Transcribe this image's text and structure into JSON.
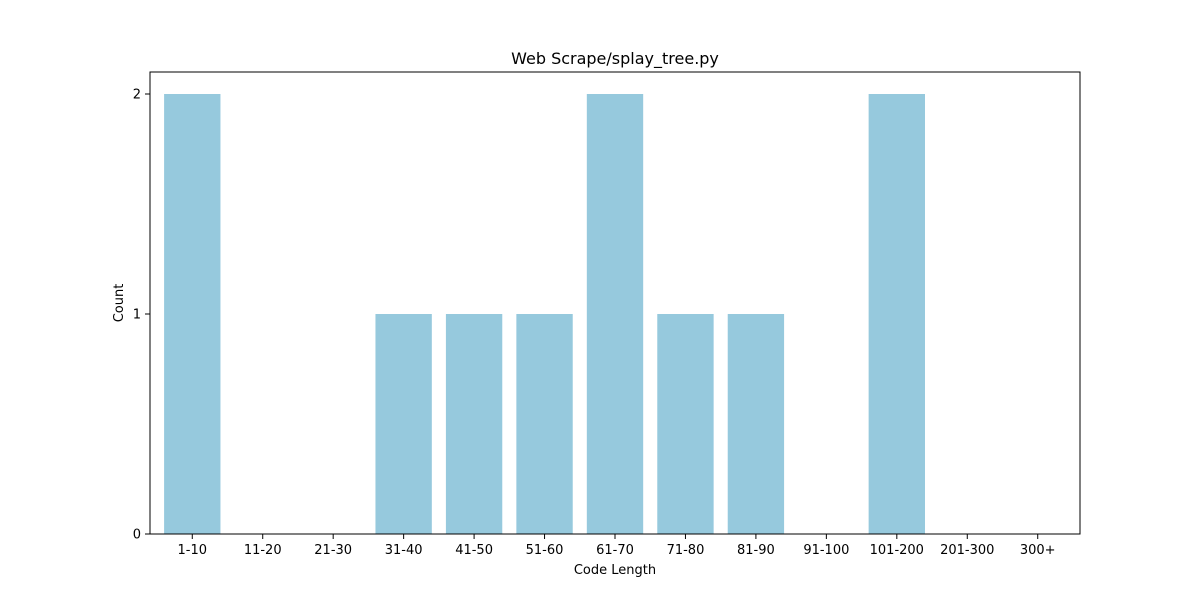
{
  "chart_data": {
    "type": "bar",
    "title": "Web Scrape/splay_tree.py",
    "xlabel": "Code Length",
    "ylabel": "Count",
    "categories": [
      "1-10",
      "11-20",
      "21-30",
      "31-40",
      "41-50",
      "51-60",
      "61-70",
      "71-80",
      "81-90",
      "91-100",
      "101-200",
      "201-300",
      "300+"
    ],
    "values": [
      2,
      0,
      0,
      1,
      1,
      1,
      2,
      1,
      1,
      0,
      2,
      0,
      0
    ],
    "ylim": [
      0,
      2.1
    ],
    "yticks": [
      0,
      1,
      2
    ],
    "grid": false,
    "bar_color": "#96c9dd"
  }
}
